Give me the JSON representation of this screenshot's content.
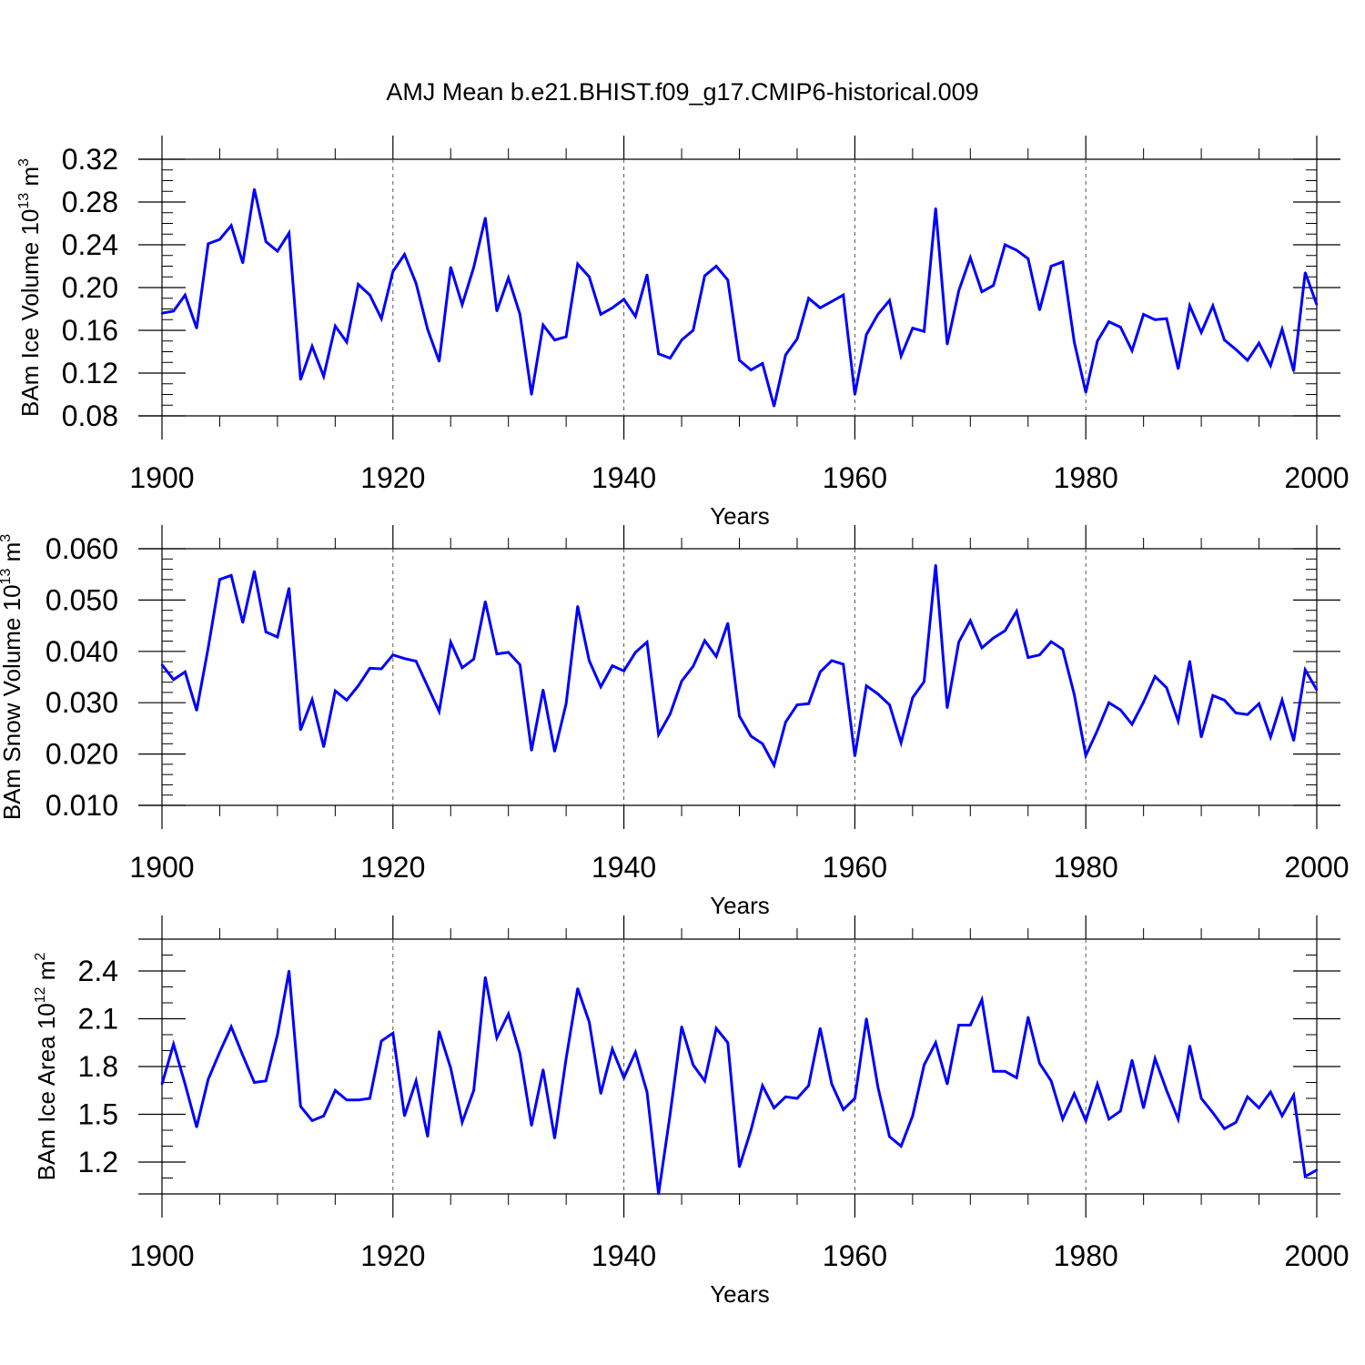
{
  "title": "AMJ Mean b.e21.BHIST.f09_g17.CMIP6-historical.009",
  "chart_data": [
    {
      "type": "line",
      "ylabel": "BAm Ice Volume 10",
      "ylabel_sup": "13",
      "ylabel_unit": " m",
      "ylabel_unit_sup": "3",
      "xlabel": "Years",
      "xlim": [
        1900,
        2000
      ],
      "ylim": [
        0.08,
        0.32
      ],
      "yticks": [
        0.08,
        0.12,
        0.16,
        0.2,
        0.24,
        0.28,
        0.32
      ],
      "yticklabels": [
        "0.08",
        "0.12",
        "0.16",
        "0.20",
        "0.24",
        "0.28",
        "0.32"
      ],
      "yminor_step": 0.01,
      "xticks": [
        1900,
        1920,
        1940,
        1960,
        1980,
        2000
      ],
      "xticklabels": [
        "1900",
        "1920",
        "1940",
        "1960",
        "1980",
        "2000"
      ],
      "series_color": "#0000ff",
      "x_start": 1900,
      "values": [
        0.176,
        0.178,
        0.193,
        0.162,
        0.241,
        0.245,
        0.258,
        0.223,
        0.292,
        0.243,
        0.234,
        0.251,
        0.114,
        0.145,
        0.117,
        0.164,
        0.149,
        0.203,
        0.193,
        0.171,
        0.215,
        0.231,
        0.204,
        0.161,
        0.131,
        0.219,
        0.184,
        0.219,
        0.265,
        0.178,
        0.209,
        0.175,
        0.1,
        0.165,
        0.151,
        0.154,
        0.222,
        0.21,
        0.175,
        0.181,
        0.189,
        0.173,
        0.212,
        0.138,
        0.134,
        0.151,
        0.16,
        0.211,
        0.22,
        0.207,
        0.132,
        0.123,
        0.129,
        0.089,
        0.137,
        0.152,
        0.19,
        0.181,
        0.187,
        0.193,
        0.1,
        0.156,
        0.175,
        0.188,
        0.136,
        0.162,
        0.159,
        0.274,
        0.147,
        0.197,
        0.228,
        0.196,
        0.202,
        0.24,
        0.235,
        0.227,
        0.179,
        0.22,
        0.224,
        0.149,
        0.102,
        0.15,
        0.168,
        0.163,
        0.141,
        0.175,
        0.17,
        0.171,
        0.124,
        0.183,
        0.158,
        0.183,
        0.151,
        0.142,
        0.132,
        0.148,
        0.127,
        0.161,
        0.122,
        0.214,
        0.184
      ]
    },
    {
      "type": "line",
      "ylabel": "BAm Snow Volume 10",
      "ylabel_sup": "13",
      "ylabel_unit": " m",
      "ylabel_unit_sup": "3",
      "xlabel": "Years",
      "xlim": [
        1900,
        2000
      ],
      "ylim": [
        0.01,
        0.06
      ],
      "yticks": [
        0.01,
        0.02,
        0.03,
        0.04,
        0.05,
        0.06
      ],
      "yticklabels": [
        "0.010",
        "0.020",
        "0.030",
        "0.040",
        "0.050",
        "0.060"
      ],
      "yminor_step": 0.002,
      "xticks": [
        1900,
        1920,
        1940,
        1960,
        1980,
        2000
      ],
      "xticklabels": [
        "1900",
        "1920",
        "1940",
        "1960",
        "1980",
        "2000"
      ],
      "series_color": "#0000ff",
      "x_start": 1900,
      "values": [
        0.0374,
        0.0345,
        0.036,
        0.0285,
        0.0407,
        0.054,
        0.0548,
        0.0456,
        0.0556,
        0.0438,
        0.0428,
        0.0523,
        0.0247,
        0.0306,
        0.0214,
        0.0323,
        0.0305,
        0.0333,
        0.0367,
        0.0366,
        0.0393,
        0.0386,
        0.0381,
        0.0332,
        0.0283,
        0.0418,
        0.0368,
        0.0385,
        0.0497,
        0.0395,
        0.0398,
        0.0374,
        0.0207,
        0.0325,
        0.0205,
        0.0298,
        0.0488,
        0.0382,
        0.0331,
        0.0372,
        0.0362,
        0.0398,
        0.0418,
        0.0238,
        0.0278,
        0.0342,
        0.0371,
        0.0421,
        0.039,
        0.0455,
        0.0274,
        0.0235,
        0.022,
        0.0178,
        0.0262,
        0.0296,
        0.0298,
        0.036,
        0.0382,
        0.0375,
        0.0196,
        0.0333,
        0.0317,
        0.0296,
        0.0222,
        0.031,
        0.0341,
        0.0568,
        0.029,
        0.0418,
        0.046,
        0.0407,
        0.0426,
        0.044,
        0.0478,
        0.0388,
        0.0393,
        0.0419,
        0.0404,
        0.0316,
        0.0197,
        0.0246,
        0.03,
        0.0286,
        0.0258,
        0.0301,
        0.0351,
        0.0329,
        0.0264,
        0.0381,
        0.0233,
        0.0314,
        0.0305,
        0.028,
        0.0277,
        0.0298,
        0.0233,
        0.0305,
        0.0226,
        0.0364,
        0.0325
      ]
    },
    {
      "type": "line",
      "ylabel": "BAm Ice Area 10",
      "ylabel_sup": "12",
      "ylabel_unit": " m",
      "ylabel_unit_sup": "2",
      "xlabel": "Years",
      "xlim": [
        1900,
        2000
      ],
      "ylim": [
        1.0,
        2.6
      ],
      "yticks": [
        1.2,
        1.5,
        1.8,
        2.1,
        2.4
      ],
      "yticklabels": [
        "1.2",
        "1.5",
        "1.8",
        "2.1",
        "2.4"
      ],
      "yminor_step": 0.1,
      "xticks": [
        1900,
        1920,
        1940,
        1960,
        1980,
        2000
      ],
      "xticklabels": [
        "1900",
        "1920",
        "1940",
        "1960",
        "1980",
        "2000"
      ],
      "series_color": "#0000ff",
      "x_start": 1900,
      "values": [
        1.69,
        1.94,
        1.69,
        1.42,
        1.72,
        1.89,
        2.05,
        1.87,
        1.7,
        1.71,
        2.0,
        2.4,
        1.55,
        1.46,
        1.49,
        1.65,
        1.59,
        1.59,
        1.6,
        1.96,
        2.01,
        1.49,
        1.71,
        1.36,
        2.02,
        1.79,
        1.45,
        1.65,
        2.36,
        1.98,
        2.13,
        1.88,
        1.43,
        1.78,
        1.35,
        1.85,
        2.29,
        2.08,
        1.63,
        1.91,
        1.73,
        1.89,
        1.64,
        1.0,
        1.5,
        2.05,
        1.81,
        1.71,
        2.04,
        1.95,
        1.17,
        1.4,
        1.68,
        1.54,
        1.61,
        1.6,
        1.68,
        2.04,
        1.69,
        1.53,
        1.6,
        2.1,
        1.67,
        1.36,
        1.3,
        1.49,
        1.81,
        1.95,
        1.69,
        2.06,
        2.06,
        2.22,
        1.77,
        1.77,
        1.73,
        2.11,
        1.82,
        1.71,
        1.47,
        1.63,
        1.46,
        1.69,
        1.47,
        1.52,
        1.84,
        1.54,
        1.85,
        1.65,
        1.47,
        1.93,
        1.6,
        1.51,
        1.41,
        1.45,
        1.61,
        1.54,
        1.64,
        1.49,
        1.62,
        1.11,
        1.15
      ]
    }
  ]
}
